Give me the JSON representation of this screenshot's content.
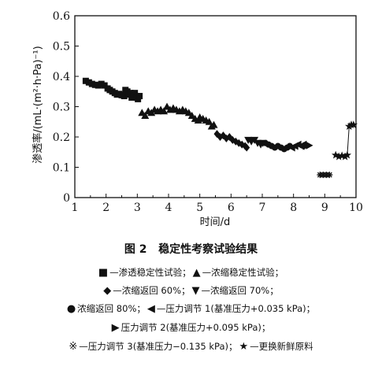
{
  "chart_data": {
    "type": "scatter",
    "ylabel": "渗透率/(mL·(m²·h·Pa)⁻¹)",
    "xlabel": "时间/d",
    "xlim": [
      1,
      10
    ],
    "ylim": [
      0,
      0.6
    ],
    "xticks": [
      "1",
      "2",
      "3",
      "4",
      "5",
      "6",
      "7",
      "8",
      "9",
      "10"
    ],
    "yticks": [
      "0",
      "0.1",
      "0.2",
      "0.3",
      "0.4",
      "0.5",
      "0.6"
    ],
    "grid": false,
    "series": [
      {
        "name": "渗透稳定性试验",
        "marker": "square",
        "points": [
          [
            1.35,
            0.385
          ],
          [
            1.45,
            0.38
          ],
          [
            1.55,
            0.375
          ],
          [
            1.65,
            0.372
          ],
          [
            1.75,
            0.37
          ],
          [
            1.85,
            0.375
          ],
          [
            1.95,
            0.37
          ],
          [
            2.05,
            0.36
          ],
          [
            2.12,
            0.355
          ],
          [
            2.2,
            0.35
          ],
          [
            2.28,
            0.345
          ],
          [
            2.35,
            0.34
          ],
          [
            2.42,
            0.342
          ],
          [
            2.5,
            0.338
          ],
          [
            2.58,
            0.335
          ],
          [
            2.62,
            0.355
          ],
          [
            2.68,
            0.35
          ],
          [
            2.72,
            0.34
          ],
          [
            2.78,
            0.345
          ],
          [
            2.82,
            0.33
          ],
          [
            2.88,
            0.335
          ],
          [
            2.92,
            0.345
          ],
          [
            2.97,
            0.33
          ],
          [
            3.02,
            0.325
          ],
          [
            3.07,
            0.335
          ]
        ]
      },
      {
        "name": "浓缩稳定性试验",
        "marker": "triangle-up",
        "points": [
          [
            3.15,
            0.28
          ],
          [
            3.25,
            0.27
          ],
          [
            3.35,
            0.285
          ],
          [
            3.45,
            0.28
          ],
          [
            3.55,
            0.29
          ],
          [
            3.65,
            0.285
          ],
          [
            3.75,
            0.29
          ],
          [
            3.85,
            0.285
          ],
          [
            3.95,
            0.3
          ],
          [
            4.05,
            0.29
          ],
          [
            4.15,
            0.295
          ],
          [
            4.25,
            0.29
          ],
          [
            4.35,
            0.285
          ],
          [
            4.45,
            0.29
          ],
          [
            4.55,
            0.285
          ],
          [
            4.65,
            0.28
          ],
          [
            4.75,
            0.27
          ],
          [
            4.85,
            0.26
          ],
          [
            4.95,
            0.255
          ],
          [
            5.0,
            0.265
          ],
          [
            5.1,
            0.26
          ],
          [
            5.2,
            0.255
          ],
          [
            5.3,
            0.25
          ],
          [
            5.38,
            0.235
          ],
          [
            5.45,
            0.24
          ]
        ]
      },
      {
        "name": "浓缩返回 60%",
        "marker": "diamond",
        "points": [
          [
            5.55,
            0.21
          ],
          [
            5.65,
            0.2
          ],
          [
            5.75,
            0.205
          ],
          [
            5.85,
            0.195
          ],
          [
            5.95,
            0.2
          ],
          [
            6.05,
            0.19
          ],
          [
            6.15,
            0.185
          ],
          [
            6.25,
            0.18
          ],
          [
            6.35,
            0.175
          ],
          [
            6.45,
            0.17
          ],
          [
            6.5,
            0.165
          ]
        ]
      },
      {
        "name": "浓缩返回 70%",
        "marker": "triangle-down",
        "points": [
          [
            6.55,
            0.19
          ],
          [
            6.65,
            0.185
          ],
          [
            6.75,
            0.19
          ],
          [
            6.85,
            0.18
          ],
          [
            6.95,
            0.175
          ],
          [
            7.02,
            0.18
          ]
        ]
      },
      {
        "name": "浓缩返回 80%",
        "marker": "circle",
        "points": [
          [
            7.1,
            0.18
          ],
          [
            7.2,
            0.175
          ],
          [
            7.3,
            0.17
          ],
          [
            7.4,
            0.165
          ],
          [
            7.5,
            0.17
          ],
          [
            7.6,
            0.165
          ],
          [
            7.7,
            0.16
          ],
          [
            7.8,
            0.165
          ],
          [
            7.88,
            0.17
          ]
        ]
      },
      {
        "name": "压力调节 1(基准压力+0.035 kPa)",
        "marker": "triangle-left",
        "points": [
          [
            7.95,
            0.165
          ],
          [
            8.05,
            0.17
          ],
          [
            8.15,
            0.175
          ],
          [
            8.25,
            0.17
          ],
          [
            8.32,
            0.175
          ]
        ]
      },
      {
        "name": "压力调节 2(基准压力+0.095 kPa)",
        "marker": "triangle-right",
        "points": [
          [
            8.4,
            0.17
          ],
          [
            8.5,
            0.172
          ]
        ]
      },
      {
        "name": "压力调节 3(基准压力-0.135 kPa)",
        "marker": "asterisk",
        "points": [
          [
            8.85,
            0.075
          ],
          [
            8.95,
            0.075
          ],
          [
            9.05,
            0.075
          ],
          [
            9.15,
            0.075
          ]
        ]
      },
      {
        "name": "更换新鲜原料",
        "marker": "star",
        "points": [
          [
            9.35,
            0.14
          ],
          [
            9.45,
            0.135
          ],
          [
            9.55,
            0.138
          ],
          [
            9.65,
            0.135
          ],
          [
            9.72,
            0.14
          ],
          [
            9.78,
            0.235
          ],
          [
            9.85,
            0.24
          ],
          [
            9.92,
            0.24
          ]
        ]
      }
    ]
  },
  "caption": {
    "figure_no": "图 2",
    "title": "稳定性考察试验结果"
  },
  "legend": {
    "line1": [
      {
        "sym": "■",
        "dash": "—",
        "label": "渗透稳定性试验；"
      },
      {
        "sym": "▲",
        "dash": "—",
        "label": "浓缩稳定性试验；"
      }
    ],
    "line2": [
      {
        "sym": "◆",
        "dash": "—",
        "label": "浓缩返回 60%；"
      },
      {
        "sym": "▼",
        "dash": "—",
        "label": "浓缩返回 70%；"
      }
    ],
    "line3": [
      {
        "sym": "●",
        "dash": "",
        "label": "浓缩返回 80%；"
      },
      {
        "sym": "◀",
        "dash": "—",
        "label": "压力调节 1(基准压力+0.035 kPa)；"
      }
    ],
    "line4": [
      {
        "sym": "▶",
        "dash": "",
        "label": "压力调节 2(基准压力+0.095 kPa)；"
      }
    ],
    "line5": [
      {
        "sym": "※",
        "dash": "—",
        "label": "压力调节 3(基准压力−0.135 kPa)；"
      },
      {
        "sym": "★",
        "dash": "—",
        "label": "更换新鲜原料"
      }
    ]
  }
}
